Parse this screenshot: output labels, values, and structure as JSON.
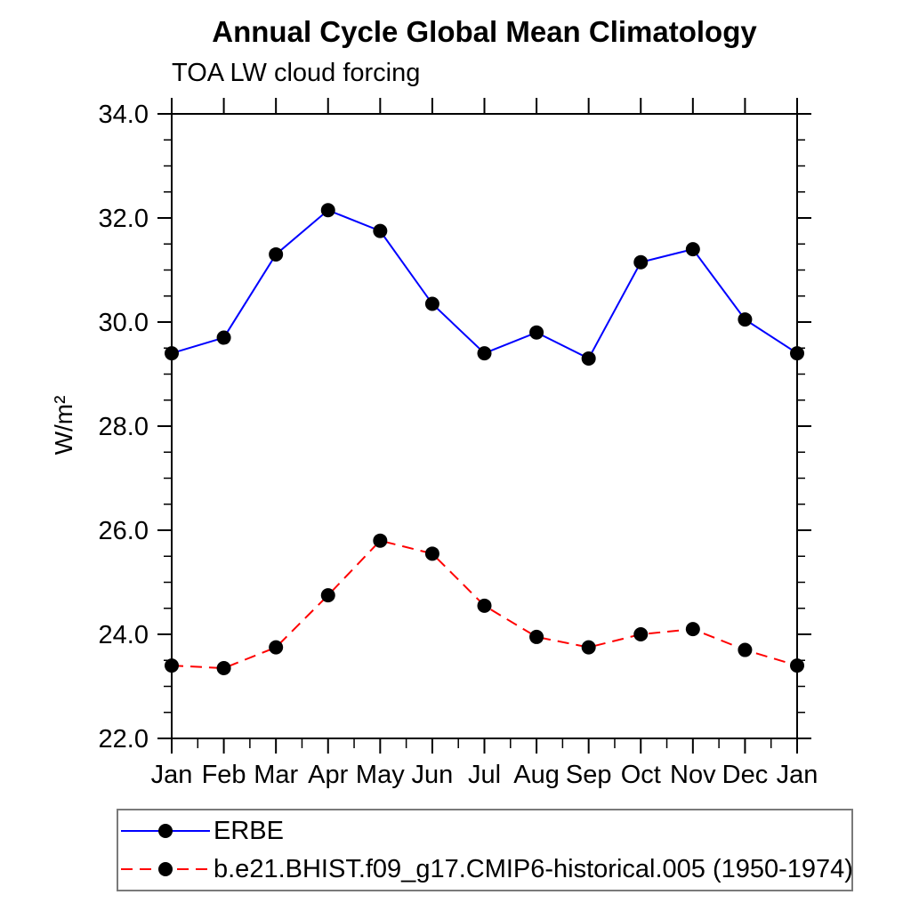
{
  "chart": {
    "title": "Annual Cycle Global Mean Climatology",
    "subtitle": "TOA LW cloud forcing",
    "ylabel": "W/m²"
  },
  "chart_data": {
    "type": "line",
    "title": "Annual Cycle Global Mean Climatology",
    "subtitle": "TOA LW cloud forcing",
    "xlabel": "",
    "ylabel": "W/m²",
    "categories": [
      "Jan",
      "Feb",
      "Mar",
      "Apr",
      "May",
      "Jun",
      "Jul",
      "Aug",
      "Sep",
      "Oct",
      "Nov",
      "Dec",
      "Jan"
    ],
    "series": [
      {
        "name": "ERBE",
        "color": "#0000ff",
        "line_style": "solid",
        "marker": "black-filled-circle",
        "values": [
          29.4,
          29.7,
          31.3,
          32.15,
          31.75,
          30.35,
          29.4,
          29.8,
          29.3,
          31.15,
          31.4,
          30.05,
          29.4
        ]
      },
      {
        "name": "b.e21.BHIST.f09_g17.CMIP6-historical.005 (1950-1974)",
        "color": "#ff0000",
        "line_style": "dashed",
        "marker": "black-filled-circle",
        "values": [
          23.4,
          23.35,
          23.75,
          24.75,
          25.8,
          25.55,
          24.55,
          23.95,
          23.75,
          24.0,
          24.1,
          23.7,
          23.4
        ]
      }
    ],
    "ylim": [
      22.0,
      34.0
    ],
    "y_major_tick_step": 2.0,
    "y_minor_tick_step": 0.5,
    "y_tick_label_format": "one-decimal",
    "grid": false,
    "legend_position": "bottom-left-box",
    "marker_color": "#000000",
    "axis_color": "#000000"
  }
}
